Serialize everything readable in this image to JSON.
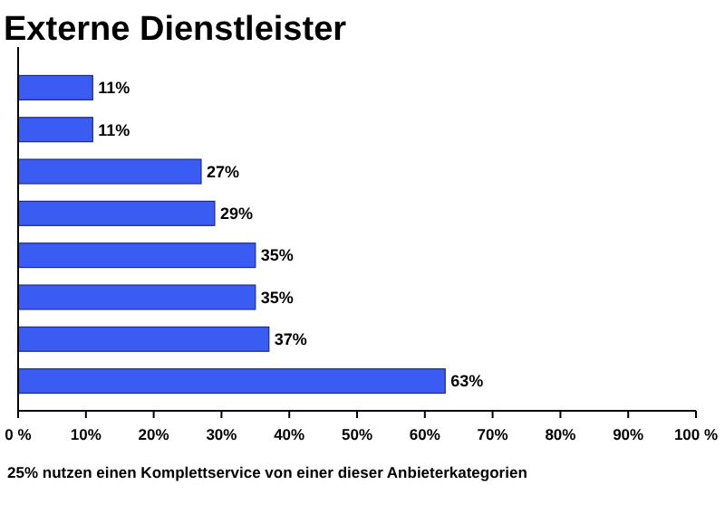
{
  "chart_data": {
    "type": "bar",
    "orientation": "horizontal",
    "title": "Externe Dienstleister",
    "categories": [
      null,
      null,
      null,
      null,
      null,
      null,
      null,
      null
    ],
    "values": [
      11,
      11,
      27,
      29,
      35,
      35,
      37,
      63
    ],
    "value_labels": [
      "11%",
      "11%",
      "27%",
      "29%",
      "35%",
      "35%",
      "37%",
      "63%"
    ],
    "color": "#3b5cf2",
    "xlim": [
      0,
      100
    ],
    "xticks": [
      {
        "value": 0,
        "label": "0 %"
      },
      {
        "value": 10,
        "label": "10%"
      },
      {
        "value": 20,
        "label": "20%"
      },
      {
        "value": 30,
        "label": "30%"
      },
      {
        "value": 40,
        "label": "40%"
      },
      {
        "value": 50,
        "label": "50%"
      },
      {
        "value": 60,
        "label": "60%"
      },
      {
        "value": 70,
        "label": "70%"
      },
      {
        "value": 80,
        "label": "80%"
      },
      {
        "value": 90,
        "label": "90%"
      },
      {
        "value": 100,
        "label": "100 %"
      }
    ],
    "annotations": [
      "25% nutzen einen Komplettservice von einer dieser Anbieterkategorien"
    ]
  }
}
